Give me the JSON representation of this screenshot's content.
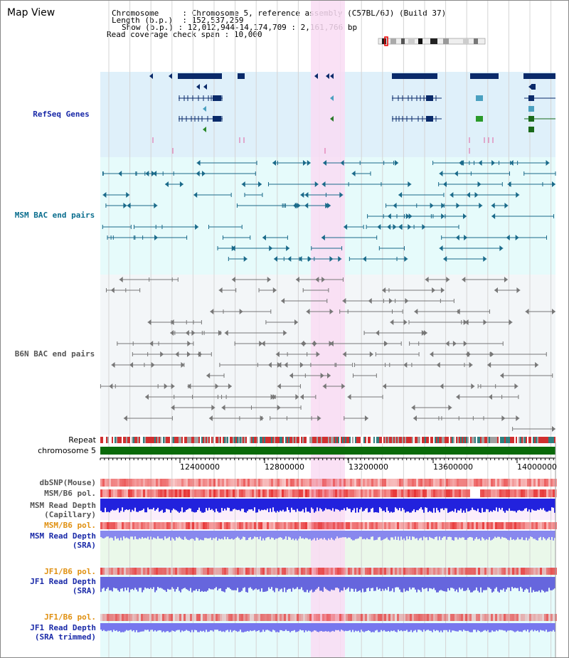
{
  "view_title": "Map View",
  "info": {
    "chromosome_key": "Chromosome",
    "chromosome_val": "Chromosome 5, reference assembly (C57BL/6J) (Build 37)",
    "length_key": "Length (b.p.)",
    "length_val": "152,537,259",
    "show_key": "Show (b.p.)",
    "show_val": "12,012,944-14,174,709 : 2,161,766 bp",
    "span_key": "Read coverage check span",
    "span_val": "10,000"
  },
  "tracks": {
    "refseq": "RefSeq Genes",
    "msm_bac": "MSM BAC end pairs",
    "b6n_bac": "B6N BAC end pairs",
    "repeat": "Repeat",
    "chromosome": "chromosome 5",
    "dbsnp": "dbSNP(Mouse)",
    "msm_b6_pol": "MSM/B6 pol.",
    "msm_depth_cap_1": "MSM Read Depth",
    "msm_depth_cap_2": "(Capillary)",
    "msm_b6_pol_2": "MSM/B6 pol.",
    "msm_depth_sra_1": "MSM Read Depth",
    "msm_depth_sra_2": "(SRA)",
    "jf1_pol": "JF1/B6 pol.",
    "jf1_depth_1": "JF1 Read Depth",
    "jf1_depth_2": "(SRA)",
    "jf1_pol_2": "JF1/B6 pol.",
    "jf1_trim_1": "JF1 Read Depth",
    "jf1_trim_2": "(SRA trimmed)"
  },
  "axis": {
    "ticks": [
      "12400000",
      "12800000",
      "13200000",
      "13600000",
      "14000000"
    ]
  },
  "colors": {
    "refseq_bg": "#dff0fa",
    "msm_bg": "#e6fbfb",
    "b6n_bg": "#f3f6f8",
    "highlight": "#f9dcf3",
    "gene_dark": "#0a2a6a",
    "bac_teal": "#1a6a8a",
    "bac_gray": "#777777",
    "chrom_green": "#0a6a0a",
    "depth_blue": "#2222dd"
  }
}
